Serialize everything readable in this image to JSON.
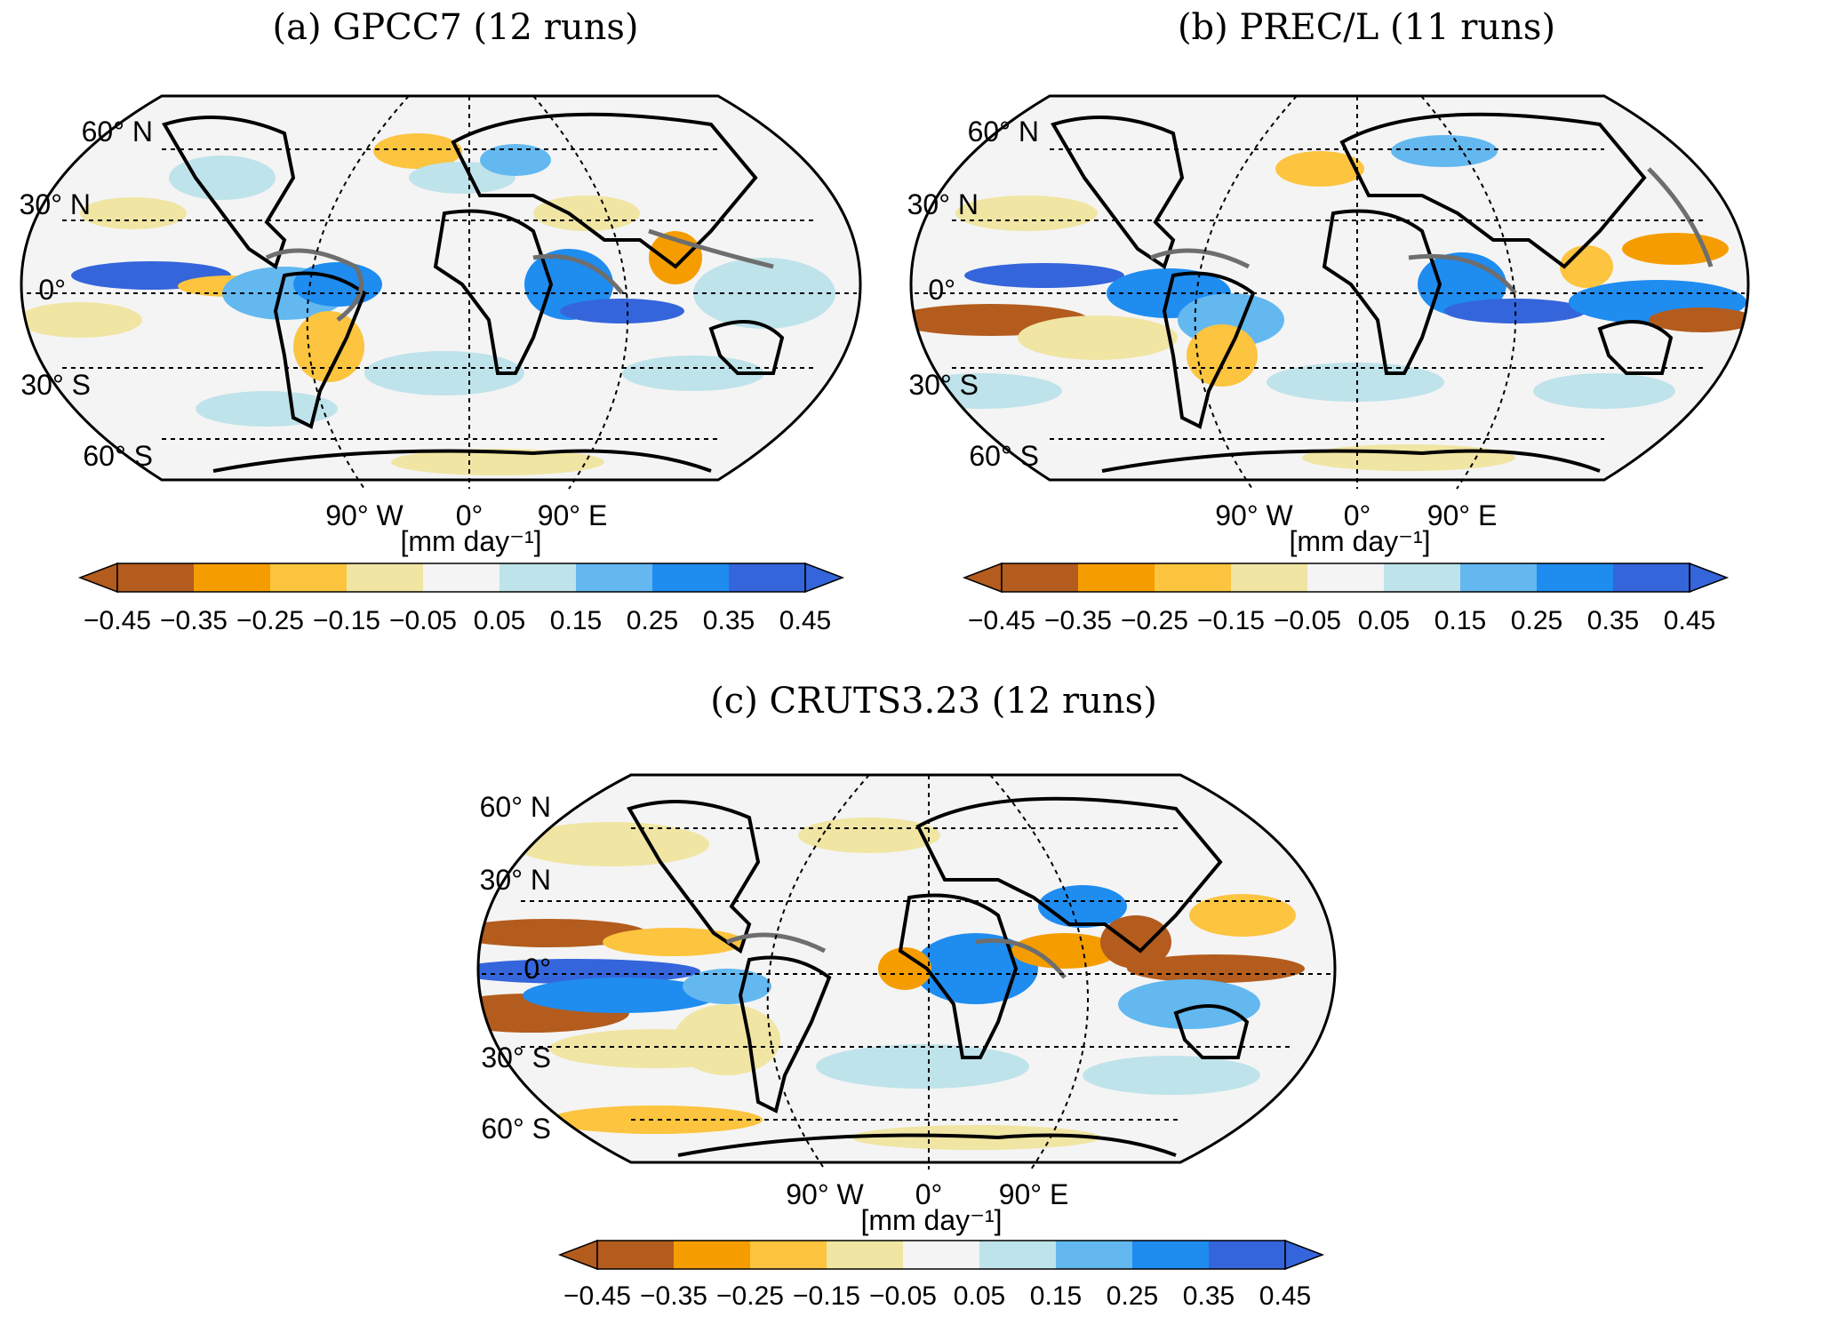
{
  "panels": [
    {
      "id": "a",
      "title": "(a) GPCC7 (12 runs)"
    },
    {
      "id": "b",
      "title": "(b) PREC/L (11 runs)"
    },
    {
      "id": "c",
      "title": "(c) CRUTS3.23 (12 runs)"
    }
  ],
  "lat_labels": [
    "60° N",
    "30° N",
    "0°",
    "30° S",
    "60° S"
  ],
  "lon_labels": [
    "90° W",
    "0°",
    "90° E"
  ],
  "unit": "[mm day⁻¹]",
  "colorbar": {
    "ticks": [
      "−0.45",
      "−0.35",
      "−0.25",
      "−0.15",
      "−0.05",
      "0.05",
      "0.15",
      "0.25",
      "0.35",
      "0.45"
    ],
    "colors": [
      "#b35c1e",
      "#f59d00",
      "#fcc43f",
      "#f0e5a3",
      "#f4f4f4",
      "#bfe3ea",
      "#63b8f0",
      "#1f8cf0",
      "#3565db"
    ],
    "under_color": "#b35c1e",
    "over_color": "#3565db"
  },
  "map_colors": {
    "ocean_background": "#f4f4f4",
    "coastline": "#000000",
    "significance_contour": "#6e6e6e",
    "grid": "#000000"
  }
}
